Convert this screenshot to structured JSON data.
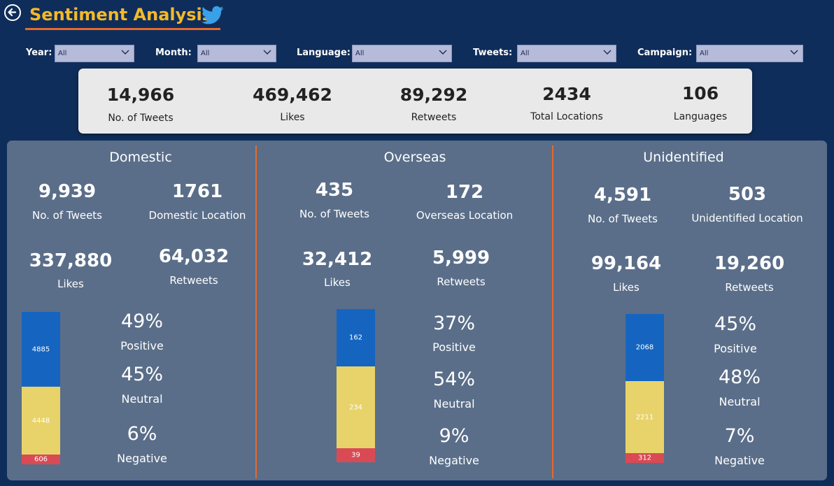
{
  "header": {
    "title": "Sentiment Analysis",
    "back_icon": "back-arrow-icon",
    "logo_icon": "twitter-bird-icon"
  },
  "filters": [
    {
      "label": "Year:",
      "value": "All"
    },
    {
      "label": "Month:",
      "value": "All"
    },
    {
      "label": "Language:",
      "value": "All"
    },
    {
      "label": "Tweets:",
      "value": "All"
    },
    {
      "label": "Campaign:",
      "value": "All"
    }
  ],
  "kpis": [
    {
      "value": "14,966",
      "label": "No. of Tweets"
    },
    {
      "value": "469,462",
      "label": "Likes"
    },
    {
      "value": "89,292",
      "label": "Retweets"
    },
    {
      "value": "2434",
      "label": "Total Locations"
    },
    {
      "value": "106",
      "label": "Languages"
    }
  ],
  "sections": [
    {
      "title": "Domestic",
      "tweets": {
        "value": "9,939",
        "label": "No. of Tweets"
      },
      "locations": {
        "value": "1761",
        "label": "Domestic Location"
      },
      "likes": {
        "value": "337,880",
        "label": "Likes"
      },
      "retweets": {
        "value": "64,032",
        "label": "Retweets"
      },
      "bar": {
        "positive": 4885,
        "neutral": 4448,
        "negative": 606
      },
      "positive": {
        "pct": "49%",
        "label": "Positive"
      },
      "neutral": {
        "pct": "45%",
        "label": "Neutral"
      },
      "negative": {
        "pct": "6%",
        "label": "Negative"
      }
    },
    {
      "title": "Overseas",
      "tweets": {
        "value": "435",
        "label": "No. of Tweets"
      },
      "locations": {
        "value": "172",
        "label": "Overseas Location"
      },
      "likes": {
        "value": "32,412",
        "label": "Likes"
      },
      "retweets": {
        "value": "5,999",
        "label": "Retweets"
      },
      "bar": {
        "positive": 162,
        "neutral": 234,
        "negative": 39
      },
      "positive": {
        "pct": "37%",
        "label": "Positive"
      },
      "neutral": {
        "pct": "54%",
        "label": "Neutral"
      },
      "negative": {
        "pct": "9%",
        "label": "Negative"
      }
    },
    {
      "title": "Unidentified",
      "tweets": {
        "value": "4,591",
        "label": "No. of Tweets"
      },
      "locations": {
        "value": "503",
        "label": "Unidentified Location"
      },
      "likes": {
        "value": "99,164",
        "label": "Likes"
      },
      "retweets": {
        "value": "19,260",
        "label": "Retweets"
      },
      "bar": {
        "positive": 2068,
        "neutral": 2211,
        "negative": 312
      },
      "positive": {
        "pct": "45%",
        "label": "Positive"
      },
      "neutral": {
        "pct": "48%",
        "label": "Neutral"
      },
      "negative": {
        "pct": "7%",
        "label": "Negative"
      }
    }
  ],
  "colors": {
    "positive": "#1565c0",
    "neutral": "#e8d36a",
    "negative": "#d94a55",
    "accent": "#e8692a",
    "title": "#f4b928"
  }
}
